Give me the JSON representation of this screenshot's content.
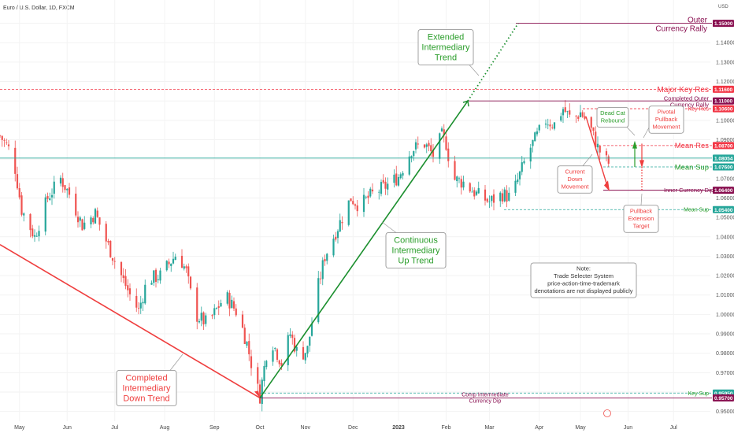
{
  "header": {
    "symbol_title": "Euro / U.S. Dollar, 1D, FXCM",
    "currency": "USD"
  },
  "chart_data": {
    "type": "candlestick",
    "title": "Euro / U.S. Dollar, 1D, FXCM",
    "ylabel": "USD",
    "ylim": [
      0.945,
      1.162
    ],
    "y_ticks": [
      "1.15000",
      "1.14000",
      "1.13000",
      "1.12000",
      "1.11000",
      "1.10000",
      "1.09000",
      "1.08000",
      "1.07000",
      "1.06000",
      "1.05000",
      "1.04000",
      "1.03000",
      "1.02000",
      "1.01000",
      "1.00000",
      "0.99000",
      "0.98000",
      "0.97000",
      "0.96000",
      "0.95000"
    ],
    "x_ticks": [
      {
        "label": "May",
        "index": 9
      },
      {
        "label": "Jun",
        "index": 31
      },
      {
        "label": "Jul",
        "index": 53
      },
      {
        "label": "Aug",
        "index": 76
      },
      {
        "label": "Sep",
        "index": 99
      },
      {
        "label": "Oct",
        "index": 120
      },
      {
        "label": "Nov",
        "index": 141
      },
      {
        "label": "Dec",
        "index": 163
      },
      {
        "label": "2023",
        "index": 184
      },
      {
        "label": "Feb",
        "index": 206
      },
      {
        "label": "Mar",
        "index": 226
      },
      {
        "label": "Apr",
        "index": 249
      },
      {
        "label": "May",
        "index": 268
      },
      {
        "label": "Jun",
        "index": 290
      },
      {
        "label": "Jul",
        "index": 311
      }
    ],
    "n_days": 320,
    "anchors": [
      [
        0,
        1.092
      ],
      [
        6,
        1.082
      ],
      [
        10,
        1.054
      ],
      [
        16,
        1.04
      ],
      [
        22,
        1.06
      ],
      [
        28,
        1.07
      ],
      [
        32,
        1.062
      ],
      [
        38,
        1.046
      ],
      [
        44,
        1.052
      ],
      [
        49,
        1.038
      ],
      [
        54,
        1.025
      ],
      [
        60,
        1.01
      ],
      [
        64,
        1.002
      ],
      [
        68,
        1.018
      ],
      [
        74,
        1.02
      ],
      [
        82,
        1.032
      ],
      [
        86,
        1.022
      ],
      [
        90,
        1.0
      ],
      [
        96,
        0.995
      ],
      [
        104,
        1.01
      ],
      [
        110,
        1.0
      ],
      [
        114,
        0.985
      ],
      [
        118,
        0.965
      ],
      [
        120,
        0.958
      ],
      [
        123,
        0.98
      ],
      [
        126,
        0.985
      ],
      [
        130,
        0.975
      ],
      [
        134,
        0.99
      ],
      [
        138,
        0.978
      ],
      [
        142,
        0.982
      ],
      [
        146,
        1.01
      ],
      [
        150,
        1.03
      ],
      [
        154,
        1.04
      ],
      [
        158,
        1.05
      ],
      [
        162,
        1.06
      ],
      [
        166,
        1.056
      ],
      [
        172,
        1.062
      ],
      [
        178,
        1.066
      ],
      [
        184,
        1.071
      ],
      [
        190,
        1.085
      ],
      [
        196,
        1.088
      ],
      [
        200,
        1.082
      ],
      [
        204,
        1.092
      ],
      [
        206,
        1.088
      ],
      [
        209,
        1.07
      ],
      [
        214,
        1.068
      ],
      [
        220,
        1.062
      ],
      [
        226,
        1.058
      ],
      [
        232,
        1.062
      ],
      [
        236,
        1.06
      ],
      [
        240,
        1.072
      ],
      [
        244,
        1.084
      ],
      [
        248,
        1.092
      ],
      [
        252,
        1.1
      ],
      [
        256,
        1.098
      ],
      [
        260,
        1.106
      ],
      [
        264,
        1.1
      ],
      [
        268,
        1.104
      ],
      [
        272,
        1.098
      ],
      [
        276,
        1.086
      ],
      [
        279,
        1.08
      ],
      [
        281,
        1.078
      ]
    ],
    "levels": [
      {
        "label": "1.15000",
        "value": 1.15,
        "color": "#880e4f",
        "note_lines": [
          "Outer",
          "Currency Rally"
        ]
      },
      {
        "label": "1.11600",
        "value": 1.116,
        "color": "#f23645",
        "dashed": true,
        "note_lines": [
          "Major Key Res"
        ]
      },
      {
        "label": "1.11000",
        "value": 1.11,
        "color": "#880e4f",
        "note_lines": [
          "Completed Outer",
          "Currency Rally"
        ]
      },
      {
        "label": "1.10600",
        "value": 1.106,
        "color": "#f23645",
        "dashed": true,
        "note_lines": [
          "Key Res"
        ]
      },
      {
        "label": "1.08700",
        "value": 1.087,
        "color": "#f23645",
        "dashed": true,
        "note_lines": [
          "Mean Res"
        ]
      },
      {
        "label": "1.08054",
        "value": 1.08054,
        "color": "#26a69a",
        "dashed": false,
        "note_lines": []
      },
      {
        "label": "1.07600",
        "value": 1.076,
        "color": "#26a69a",
        "dashed": true,
        "note_lines": [
          "Mean Sup"
        ]
      },
      {
        "label": "1.06400",
        "value": 1.064,
        "color": "#880e4f",
        "note_lines": [
          "Inner Currency Dip"
        ]
      },
      {
        "label": "1.05400",
        "value": 1.054,
        "color": "#26a69a",
        "dashed": true,
        "note_lines": [
          "Mean Sup"
        ]
      },
      {
        "label": "0.95950",
        "value": 0.9595,
        "color": "#26a69a",
        "dashed": true,
        "note_lines": [
          "Key Sup"
        ]
      },
      {
        "label": "0.95700",
        "value": 0.957,
        "color": "#880e4f",
        "note_lines": [
          "Comp Intermediate",
          "Currency Dip"
        ]
      }
    ],
    "annotations": {
      "extended": [
        "Extended",
        "Intermediary",
        "Trend"
      ],
      "continuous": [
        "Continuous",
        "Intermediary",
        "Up Trend"
      ],
      "completed": [
        "Completed",
        "Intermediary",
        "Down Trend"
      ],
      "dead_cat": [
        "Dead Cat",
        "Rebound"
      ],
      "pivotal": [
        "Pivotal",
        "Pullback",
        "Movement"
      ],
      "current": [
        "Current",
        "Down",
        "Movement"
      ],
      "pullback": [
        "Pullback",
        "Extension",
        "Target"
      ],
      "note": [
        "Note:",
        "Trade Selecter System",
        "price-action-time-trademark",
        "denotations are not displayed publicly"
      ]
    },
    "colors": {
      "up": "#26a69a",
      "down": "#ef5350",
      "uptrend": "#1b8f2e",
      "downtrend": "#ef3e3e",
      "outer": "#880e4f"
    }
  }
}
